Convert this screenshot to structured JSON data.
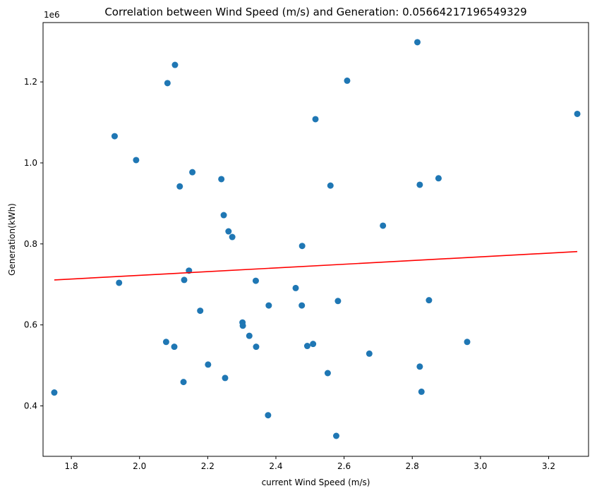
{
  "chart_data": {
    "type": "scatter",
    "title": "Correlation between Wind Speed (m/s) and Generation: 0.05664217196549329",
    "xlabel": "current Wind Speed (m/s)",
    "ylabel": "Generation(kWh)",
    "y_offset_label": "1e6",
    "xlim": [
      1.717,
      3.317
    ],
    "ylim": [
      0.2755,
      1.3465
    ],
    "xticks": [
      1.8,
      2.0,
      2.2,
      2.4,
      2.6,
      2.8,
      3.0,
      3.2
    ],
    "xtick_labels": [
      "1.8",
      "2.0",
      "2.2",
      "2.4",
      "2.6",
      "2.8",
      "3.0",
      "3.2"
    ],
    "yticks": [
      0.4,
      0.6,
      0.8,
      1.0,
      1.2
    ],
    "ytick_labels": [
      "0.4",
      "0.6",
      "0.8",
      "1.0",
      "1.2"
    ],
    "grid": false,
    "point_color": "#1f77b4",
    "trend_color": "#ff0000",
    "points": [
      {
        "x": 1.75,
        "y": 0.433
      },
      {
        "x": 1.927,
        "y": 1.066
      },
      {
        "x": 1.94,
        "y": 0.704
      },
      {
        "x": 1.99,
        "y": 1.007
      },
      {
        "x": 2.078,
        "y": 0.558
      },
      {
        "x": 2.082,
        "y": 1.197
      },
      {
        "x": 2.102,
        "y": 0.546
      },
      {
        "x": 2.104,
        "y": 1.242
      },
      {
        "x": 2.118,
        "y": 0.942
      },
      {
        "x": 2.129,
        "y": 0.459
      },
      {
        "x": 2.131,
        "y": 0.711
      },
      {
        "x": 2.145,
        "y": 0.734
      },
      {
        "x": 2.155,
        "y": 0.977
      },
      {
        "x": 2.178,
        "y": 0.635
      },
      {
        "x": 2.201,
        "y": 0.502
      },
      {
        "x": 2.24,
        "y": 0.96
      },
      {
        "x": 2.247,
        "y": 0.871
      },
      {
        "x": 2.251,
        "y": 0.469
      },
      {
        "x": 2.261,
        "y": 0.831
      },
      {
        "x": 2.272,
        "y": 0.817
      },
      {
        "x": 2.302,
        "y": 0.606
      },
      {
        "x": 2.303,
        "y": 0.598
      },
      {
        "x": 2.322,
        "y": 0.573
      },
      {
        "x": 2.341,
        "y": 0.709
      },
      {
        "x": 2.342,
        "y": 0.546
      },
      {
        "x": 2.377,
        "y": 0.377
      },
      {
        "x": 2.379,
        "y": 0.648
      },
      {
        "x": 2.458,
        "y": 0.691
      },
      {
        "x": 2.476,
        "y": 0.648
      },
      {
        "x": 2.477,
        "y": 0.795
      },
      {
        "x": 2.492,
        "y": 0.548
      },
      {
        "x": 2.509,
        "y": 0.553
      },
      {
        "x": 2.516,
        "y": 1.108
      },
      {
        "x": 2.552,
        "y": 0.481
      },
      {
        "x": 2.56,
        "y": 0.944
      },
      {
        "x": 2.577,
        "y": 0.326
      },
      {
        "x": 2.582,
        "y": 0.659
      },
      {
        "x": 2.609,
        "y": 1.203
      },
      {
        "x": 2.674,
        "y": 0.529
      },
      {
        "x": 2.714,
        "y": 0.845
      },
      {
        "x": 2.815,
        "y": 1.298
      },
      {
        "x": 2.822,
        "y": 0.497
      },
      {
        "x": 2.822,
        "y": 0.946
      },
      {
        "x": 2.827,
        "y": 0.435
      },
      {
        "x": 2.849,
        "y": 0.661
      },
      {
        "x": 2.877,
        "y": 0.962
      },
      {
        "x": 2.961,
        "y": 0.558
      },
      {
        "x": 3.284,
        "y": 1.121
      }
    ],
    "trendline": {
      "x": [
        1.75,
        3.284
      ],
      "y": [
        0.711,
        0.781
      ]
    }
  }
}
